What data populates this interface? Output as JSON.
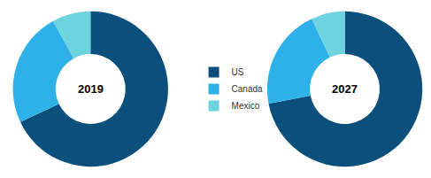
{
  "chart_data": [
    {
      "type": "pie",
      "title": "2019",
      "categories": [
        "US",
        "Canada",
        "Mexico"
      ],
      "values": [
        68,
        24,
        8
      ],
      "colors": [
        "#0b4f7c",
        "#2eb1e8",
        "#6dd3df"
      ],
      "legend": "center"
    },
    {
      "type": "pie",
      "title": "2027",
      "categories": [
        "US",
        "Canada",
        "Mexico"
      ],
      "values": [
        72,
        21,
        7
      ],
      "colors": [
        "#0b4f7c",
        "#2eb1e8",
        "#6dd3df"
      ]
    }
  ]
}
